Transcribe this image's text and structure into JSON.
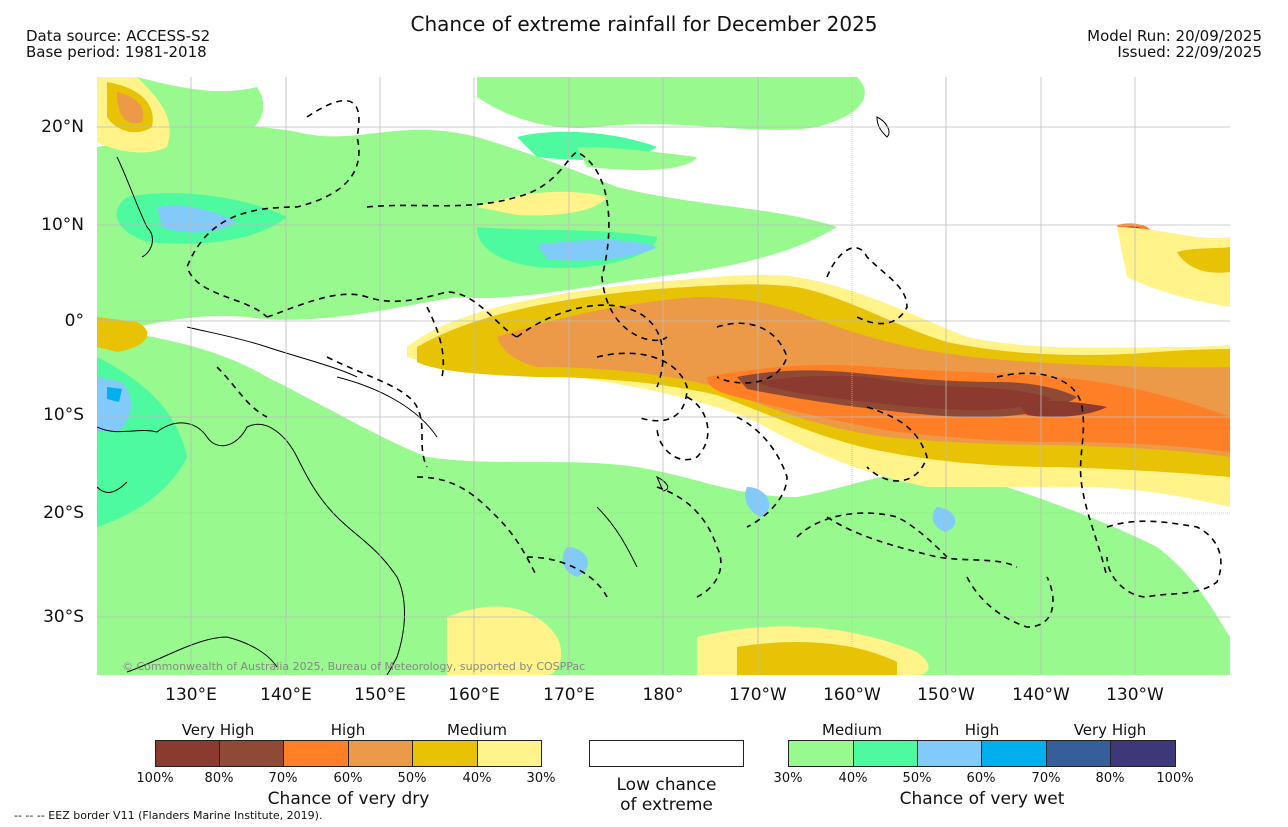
{
  "header": {
    "title": "Chance of extreme rainfall for December 2025",
    "data_source": "Data source: ACCESS-S2",
    "base_period": "Base period: 1981-2018",
    "model_run": "Model Run: 20/09/2025",
    "issued": "Issued: 22/09/2025"
  },
  "map": {
    "lat_labels": [
      "20°N",
      "10°N",
      "0°",
      "10°S",
      "20°S",
      "30°S"
    ],
    "lon_labels": [
      "130°E",
      "140°E",
      "150°E",
      "160°E",
      "170°E",
      "180°",
      "170°W",
      "160°W",
      "150°W",
      "140°W",
      "130°W"
    ],
    "copyright": "© Commonwealth of Australia 2025, Bureau of Meteorology, supported by COSPPac"
  },
  "legend": {
    "dry": {
      "categories": [
        "Very High",
        "High",
        "Medium"
      ],
      "ticks": [
        "100%",
        "80%",
        "70%",
        "60%",
        "50%",
        "40%",
        "30%"
      ],
      "colors": [
        "#8b3a2f",
        "#8f4a35",
        "#ff7f27",
        "#ec9a48",
        "#e8c205",
        "#fff38a"
      ],
      "caption": "Chance of very dry"
    },
    "low": {
      "line1": "Low chance",
      "line2": "of extreme"
    },
    "wet": {
      "categories": [
        "Medium",
        "High",
        "Very High"
      ],
      "ticks": [
        "30%",
        "40%",
        "50%",
        "60%",
        "70%",
        "80%",
        "100%"
      ],
      "colors": [
        "#98f98e",
        "#4efa9f",
        "#82cafa",
        "#00b0ee",
        "#365e9b",
        "#3e3878"
      ],
      "caption": "Chance of very wet"
    }
  },
  "footer": {
    "eez": "-- -- -- EEZ border V11 (Flanders Marine Institute, 2019)."
  }
}
